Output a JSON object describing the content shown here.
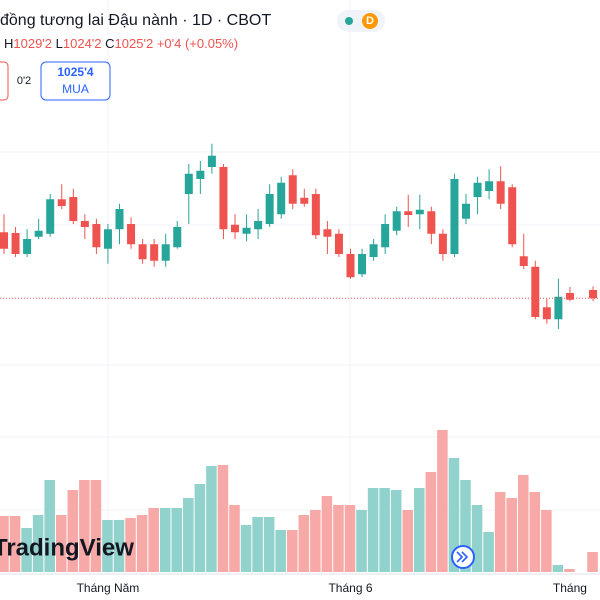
{
  "header": {
    "title": "đồng tương lai Đậu nành · 1D · CBOT",
    "badge": "D",
    "ohlc": [
      {
        "label": "H",
        "value": "1029'2"
      },
      {
        "label": "L",
        "value": "1024'2"
      },
      {
        "label": "C",
        "value": "1025'2"
      }
    ],
    "change": "+0'4 (+0.05%)",
    "spread": "0'2",
    "buy_price": "1025'4",
    "buy_label": "MUA",
    "watermark": "TradingView"
  },
  "chart_data": {
    "type": "candlestick",
    "categories": [
      null,
      null,
      null,
      null,
      null,
      null,
      null,
      null,
      null,
      "Tháng Năm",
      null,
      null,
      null,
      null,
      null,
      null,
      null,
      null,
      null,
      null,
      null,
      null,
      null,
      null,
      null,
      null,
      null,
      null,
      null,
      null,
      "Tháng 6",
      null,
      null,
      null,
      null,
      null,
      null,
      null,
      null,
      null,
      null,
      null,
      null,
      null,
      null,
      null,
      null,
      null,
      null,
      "Tháng",
      null,
      null
    ],
    "candles": [
      {
        "o": 1047.25,
        "h": 1053.25,
        "l": 1040,
        "c": 1041.75
      },
      {
        "o": 1047,
        "h": 1049,
        "l": 1039,
        "c": 1040
      },
      {
        "o": 1040,
        "h": 1048.25,
        "l": 1039,
        "c": 1045
      },
      {
        "o": 1045.75,
        "h": 1051.75,
        "l": 1045,
        "c": 1047.75
      },
      {
        "o": 1046.75,
        "h": 1060,
        "l": 1045.75,
        "c": 1058.25
      },
      {
        "o": 1058.25,
        "h": 1063.25,
        "l": 1055,
        "c": 1056
      },
      {
        "o": 1059,
        "h": 1061.75,
        "l": 1050,
        "c": 1051
      },
      {
        "o": 1051,
        "h": 1053.25,
        "l": 1045,
        "c": 1049
      },
      {
        "o": 1050,
        "h": 1051.75,
        "l": 1040,
        "c": 1042.25
      },
      {
        "o": 1041.75,
        "h": 1050,
        "l": 1036.75,
        "c": 1048.25
      },
      {
        "o": 1048.25,
        "h": 1056.75,
        "l": 1043.25,
        "c": 1055
      },
      {
        "o": 1050,
        "h": 1052.25,
        "l": 1041.75,
        "c": 1043.25
      },
      {
        "o": 1043.25,
        "h": 1045,
        "l": 1036.75,
        "c": 1038.25
      },
      {
        "o": 1043.25,
        "h": 1045,
        "l": 1035.75,
        "c": 1037.75
      },
      {
        "o": 1037.75,
        "h": 1046.75,
        "l": 1035.75,
        "c": 1043.25
      },
      {
        "o": 1042.25,
        "h": 1051,
        "l": 1041.75,
        "c": 1049
      },
      {
        "o": 1060,
        "h": 1070,
        "l": 1050,
        "c": 1066.75
      },
      {
        "o": 1065,
        "h": 1071,
        "l": 1060,
        "c": 1067.75
      },
      {
        "o": 1069,
        "h": 1076.75,
        "l": 1066.75,
        "c": 1072.75
      },
      {
        "o": 1069,
        "h": 1070,
        "l": 1045,
        "c": 1048.25
      },
      {
        "o": 1049.75,
        "h": 1053.25,
        "l": 1045,
        "c": 1047.25
      },
      {
        "o": 1046.75,
        "h": 1053.25,
        "l": 1044.25,
        "c": 1048.75
      },
      {
        "o": 1048.25,
        "h": 1055,
        "l": 1045,
        "c": 1051
      },
      {
        "o": 1050,
        "h": 1063.25,
        "l": 1049,
        "c": 1060
      },
      {
        "o": 1053.25,
        "h": 1065.75,
        "l": 1051.75,
        "c": 1063.75
      },
      {
        "o": 1066.25,
        "h": 1068.25,
        "l": 1055,
        "c": 1056.75
      },
      {
        "o": 1058.75,
        "h": 1061.75,
        "l": 1055.75,
        "c": 1056.75
      },
      {
        "o": 1060,
        "h": 1061.75,
        "l": 1045,
        "c": 1046.25
      },
      {
        "o": 1048.25,
        "h": 1051,
        "l": 1040,
        "c": 1045.75
      },
      {
        "o": 1046.75,
        "h": 1048.25,
        "l": 1039,
        "c": 1040
      },
      {
        "o": 1040,
        "h": 1041.75,
        "l": 1031.75,
        "c": 1032.25
      },
      {
        "o": 1033.25,
        "h": 1041.75,
        "l": 1032.25,
        "c": 1040
      },
      {
        "o": 1039,
        "h": 1045,
        "l": 1037.75,
        "c": 1043.25
      },
      {
        "o": 1042.25,
        "h": 1053.25,
        "l": 1040,
        "c": 1050
      },
      {
        "o": 1047.75,
        "h": 1055.75,
        "l": 1046.25,
        "c": 1054.25
      },
      {
        "o": 1054.25,
        "h": 1059.75,
        "l": 1049,
        "c": 1053
      },
      {
        "o": 1053.25,
        "h": 1059.75,
        "l": 1048.25,
        "c": 1054.75
      },
      {
        "o": 1054.25,
        "h": 1055.75,
        "l": 1043.25,
        "c": 1046.75
      },
      {
        "o": 1046.75,
        "h": 1048.25,
        "l": 1037.75,
        "c": 1040
      },
      {
        "o": 1040,
        "h": 1066.75,
        "l": 1039,
        "c": 1065
      },
      {
        "o": 1051.75,
        "h": 1060,
        "l": 1050,
        "c": 1056.75
      },
      {
        "o": 1059,
        "h": 1065.75,
        "l": 1053.25,
        "c": 1063.75
      },
      {
        "o": 1061,
        "h": 1068.25,
        "l": 1058.25,
        "c": 1064.25
      },
      {
        "o": 1064.25,
        "h": 1069.25,
        "l": 1055,
        "c": 1056.75
      },
      {
        "o": 1062.25,
        "h": 1063.25,
        "l": 1042.25,
        "c": 1043.25
      },
      {
        "o": 1039.25,
        "h": 1046.75,
        "l": 1035,
        "c": 1036
      },
      {
        "o": 1035.75,
        "h": 1037.75,
        "l": 1018.25,
        "c": 1019
      },
      {
        "o": 1022.25,
        "h": 1025,
        "l": 1016.75,
        "c": 1018.25
      },
      {
        "o": 1018.25,
        "h": 1031.75,
        "l": 1015,
        "c": 1025.75
      },
      {
        "o": 1027,
        "h": 1029,
        "l": 1024.25,
        "c": 1024.75
      },
      null,
      {
        "o": 1028,
        "h": 1029.25,
        "l": 1024.25,
        "c": 1025.25
      }
    ],
    "volumes": [
      56,
      56,
      44,
      57,
      92,
      57,
      82,
      92,
      92,
      52,
      52,
      54,
      57,
      64,
      64,
      64,
      74,
      88,
      106,
      107,
      67,
      47,
      55,
      55,
      42,
      42,
      57,
      62,
      76,
      67,
      67,
      62,
      84,
      84,
      82,
      62,
      84,
      100,
      142,
      114,
      92,
      67,
      40,
      80,
      74,
      97,
      80,
      62,
      7,
      3,
      null,
      20
    ],
    "ylim": [
      992,
      1104
    ],
    "vlim": [
      0,
      150
    ],
    "up_color": "#26a69a",
    "down_color": "#ef5350",
    "up_volume_color": "#92d2cc",
    "down_volume_color": "#f7a9a7"
  }
}
